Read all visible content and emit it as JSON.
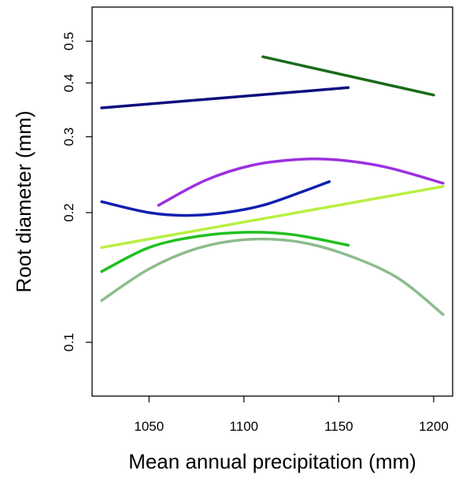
{
  "chart_data": {
    "type": "line",
    "title": "",
    "xlabel": "Mean annual precipitation (mm)",
    "ylabel": "Root diameter (mm)",
    "y_scale": "log",
    "xlim": [
      1020,
      1210
    ],
    "ylim": [
      0.075,
      0.6
    ],
    "x_ticks": [
      1050,
      1100,
      1150,
      1200
    ],
    "y_ticks": [
      0.1,
      0.2,
      0.3,
      0.4,
      0.5
    ],
    "grid": false,
    "legend": "none",
    "series": [
      {
        "color": "#1a6b1a",
        "x": [
          1110,
          1200
        ],
        "y": [
          0.46,
          0.375
        ]
      },
      {
        "color": "#0d0d80",
        "x": [
          1025,
          1155
        ],
        "y": [
          0.35,
          0.39
        ]
      },
      {
        "color": "#9b30e0",
        "x": [
          1055,
          1080,
          1105,
          1130,
          1150,
          1175,
          1205
        ],
        "y": [
          0.208,
          0.238,
          0.258,
          0.266,
          0.265,
          0.255,
          0.234
        ]
      },
      {
        "color": "#1020b0",
        "x": [
          1025,
          1050,
          1070,
          1090,
          1110,
          1130,
          1145
        ],
        "y": [
          0.212,
          0.2,
          0.197,
          0.2,
          0.208,
          0.223,
          0.236
        ]
      },
      {
        "color": "#b8f040",
        "x": [
          1025,
          1205
        ],
        "y": [
          0.166,
          0.23
        ]
      },
      {
        "color": "#20c020",
        "x": [
          1025,
          1050,
          1075,
          1100,
          1125,
          1155
        ],
        "y": [
          0.146,
          0.166,
          0.176,
          0.18,
          0.178,
          0.168
        ]
      },
      {
        "color": "#8cbc8c",
        "x": [
          1025,
          1050,
          1075,
          1100,
          1125,
          1150,
          1180,
          1205
        ],
        "y": [
          0.125,
          0.148,
          0.165,
          0.173,
          0.172,
          0.162,
          0.142,
          0.116
        ]
      }
    ]
  }
}
